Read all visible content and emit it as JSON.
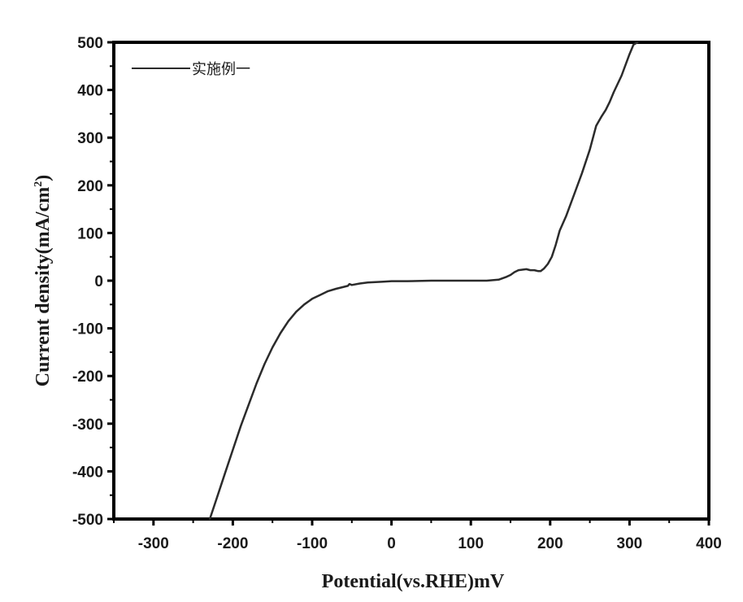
{
  "chart_data": {
    "type": "line",
    "xlabel": "Potential(vs.RHE)mV",
    "ylabel": "Current density(mA/cm",
    "ylabel_sup": "2",
    "ylabel_close": ")",
    "xlim": [
      -350,
      400
    ],
    "ylim": [
      -500,
      500
    ],
    "xticks": [
      -300,
      -200,
      -100,
      0,
      100,
      200,
      300,
      400
    ],
    "yticks": [
      -500,
      -400,
      -300,
      -200,
      -100,
      0,
      100,
      200,
      300,
      400,
      500
    ],
    "grid": false,
    "legend_position": "top-left",
    "series": [
      {
        "name": "实施例一",
        "color": "#2b2b2b",
        "x": [
          -229,
          -220,
          -210,
          -200,
          -190,
          -180,
          -170,
          -160,
          -150,
          -140,
          -130,
          -120,
          -110,
          -100,
          -90,
          -80,
          -70,
          -60,
          -55,
          -53,
          -50,
          -40,
          -30,
          -20,
          -10,
          0,
          20,
          50,
          80,
          100,
          120,
          135,
          145,
          150,
          155,
          160,
          165,
          170,
          175,
          180,
          185,
          188,
          192,
          197,
          202,
          207,
          212,
          220,
          230,
          240,
          250,
          258,
          265,
          270,
          275,
          280,
          290,
          300,
          305,
          310
        ],
        "y": [
          -500,
          -455,
          -405,
          -355,
          -305,
          -260,
          -215,
          -175,
          -140,
          -110,
          -85,
          -65,
          -50,
          -38,
          -30,
          -22,
          -17,
          -13,
          -11,
          -7,
          -9,
          -6,
          -4,
          -3,
          -2,
          -1,
          -1,
          0,
          0,
          0,
          0,
          2,
          8,
          12,
          18,
          22,
          23,
          24,
          22,
          22,
          20,
          20,
          25,
          35,
          50,
          75,
          105,
          135,
          180,
          225,
          275,
          325,
          345,
          358,
          375,
          395,
          430,
          475,
          495,
          500
        ]
      }
    ]
  }
}
